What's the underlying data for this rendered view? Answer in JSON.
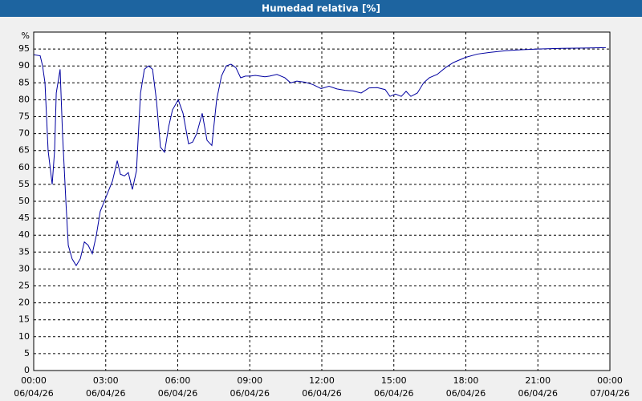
{
  "chart_data": {
    "type": "line",
    "title": "Humedad relativa [%]",
    "y_label": "%",
    "xlim": [
      0,
      24
    ],
    "ylim": [
      0,
      100
    ],
    "grid": true,
    "xticks": [
      {
        "value": 0,
        "label": "00:00",
        "date": "06/04/26"
      },
      {
        "value": 3,
        "label": "03:00",
        "date": "06/04/26"
      },
      {
        "value": 6,
        "label": "06:00",
        "date": "06/04/26"
      },
      {
        "value": 9,
        "label": "09:00",
        "date": "06/04/26"
      },
      {
        "value": 12,
        "label": "12:00",
        "date": "06/04/26"
      },
      {
        "value": 15,
        "label": "15:00",
        "date": "06/04/26"
      },
      {
        "value": 18,
        "label": "18:00",
        "date": "06/04/26"
      },
      {
        "value": 21,
        "label": "21:00",
        "date": "06/04/26"
      },
      {
        "value": 24,
        "label": "00:00",
        "date": "07/04/26"
      }
    ],
    "yticks": [
      0,
      5,
      10,
      15,
      20,
      25,
      30,
      35,
      40,
      45,
      50,
      55,
      60,
      65,
      70,
      75,
      80,
      85,
      90,
      95
    ],
    "x": [
      0,
      0.27,
      0.37,
      0.47,
      0.6,
      0.77,
      0.87,
      0.94,
      1.1,
      1.2,
      1.34,
      1.44,
      1.6,
      1.77,
      1.94,
      2.11,
      2.27,
      2.44,
      2.61,
      2.77,
      2.94,
      3.11,
      3.28,
      3.48,
      3.61,
      3.78,
      3.94,
      4.11,
      4.28,
      4.45,
      4.61,
      4.78,
      4.95,
      5.11,
      5.28,
      5.45,
      5.62,
      5.78,
      6.02,
      6.22,
      6.45,
      6.62,
      6.79,
      7.02,
      7.22,
      7.42,
      7.62,
      7.82,
      8.02,
      8.22,
      8.42,
      8.62,
      8.82,
      9.02,
      9.23,
      9.43,
      9.63,
      9.83,
      10.13,
      10.46,
      10.7,
      10.96,
      11.3,
      11.63,
      11.97,
      12.3,
      12.63,
      12.97,
      13.3,
      13.64,
      13.97,
      14.31,
      14.64,
      14.84,
      15.07,
      15.31,
      15.51,
      15.71,
      15.98,
      16.24,
      16.48,
      16.81,
      17.15,
      17.48,
      17.98,
      18.48,
      18.99,
      19.65,
      20.32,
      20.99,
      21.99,
      22.99,
      23.83
    ],
    "series": [
      {
        "name": "Humedad relativa",
        "color": "#0000a0",
        "values": [
          93.3,
          93,
          90,
          85,
          65,
          55,
          65,
          82,
          89,
          70,
          50,
          37,
          33,
          31,
          33,
          38,
          37,
          34.5,
          40,
          47,
          50,
          53,
          56,
          62,
          58,
          57.5,
          58.5,
          53.5,
          59,
          82,
          89,
          90,
          89,
          80,
          66,
          64.5,
          72,
          77,
          80,
          76,
          67,
          67.5,
          70,
          76,
          68,
          66.5,
          80,
          87,
          90,
          90.5,
          89.5,
          86.5,
          87,
          87,
          87.2,
          87,
          86.8,
          87,
          87.5,
          86.5,
          85,
          85.5,
          85.2,
          84.5,
          83.3,
          84,
          83.2,
          82.8,
          82.6,
          82,
          83.5,
          83.6,
          83,
          81,
          81.7,
          81,
          82.5,
          81,
          82,
          85,
          86.5,
          87.5,
          89.5,
          91,
          92.5,
          93.5,
          94,
          94.5,
          94.8,
          95,
          95.2,
          95.3,
          95.4
        ]
      }
    ]
  }
}
